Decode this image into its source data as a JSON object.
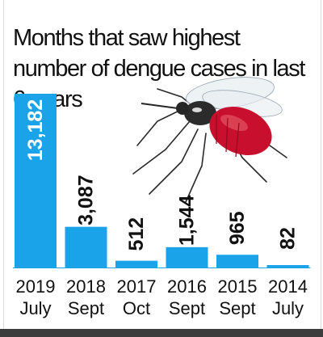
{
  "chart_data": {
    "type": "bar",
    "title": "Months that saw highest number of dengue cases in last 6 years",
    "categories": [
      {
        "year": "2019",
        "month": "July"
      },
      {
        "year": "2018",
        "month": "Sept"
      },
      {
        "year": "2017",
        "month": "Oct"
      },
      {
        "year": "2016",
        "month": "Sept"
      },
      {
        "year": "2015",
        "month": "Sept"
      },
      {
        "year": "2014",
        "month": "July"
      }
    ],
    "values": [
      13182,
      3087,
      512,
      1544,
      965,
      82
    ],
    "value_labels": [
      "13,182",
      "3,087",
      "512",
      "1,544",
      "965",
      "82"
    ],
    "bar_color": "#1aa3e8",
    "grid": false,
    "legend": "none",
    "ylim": [
      0,
      13182
    ]
  },
  "decoration": {
    "illustration": "mosquito-illustration"
  }
}
